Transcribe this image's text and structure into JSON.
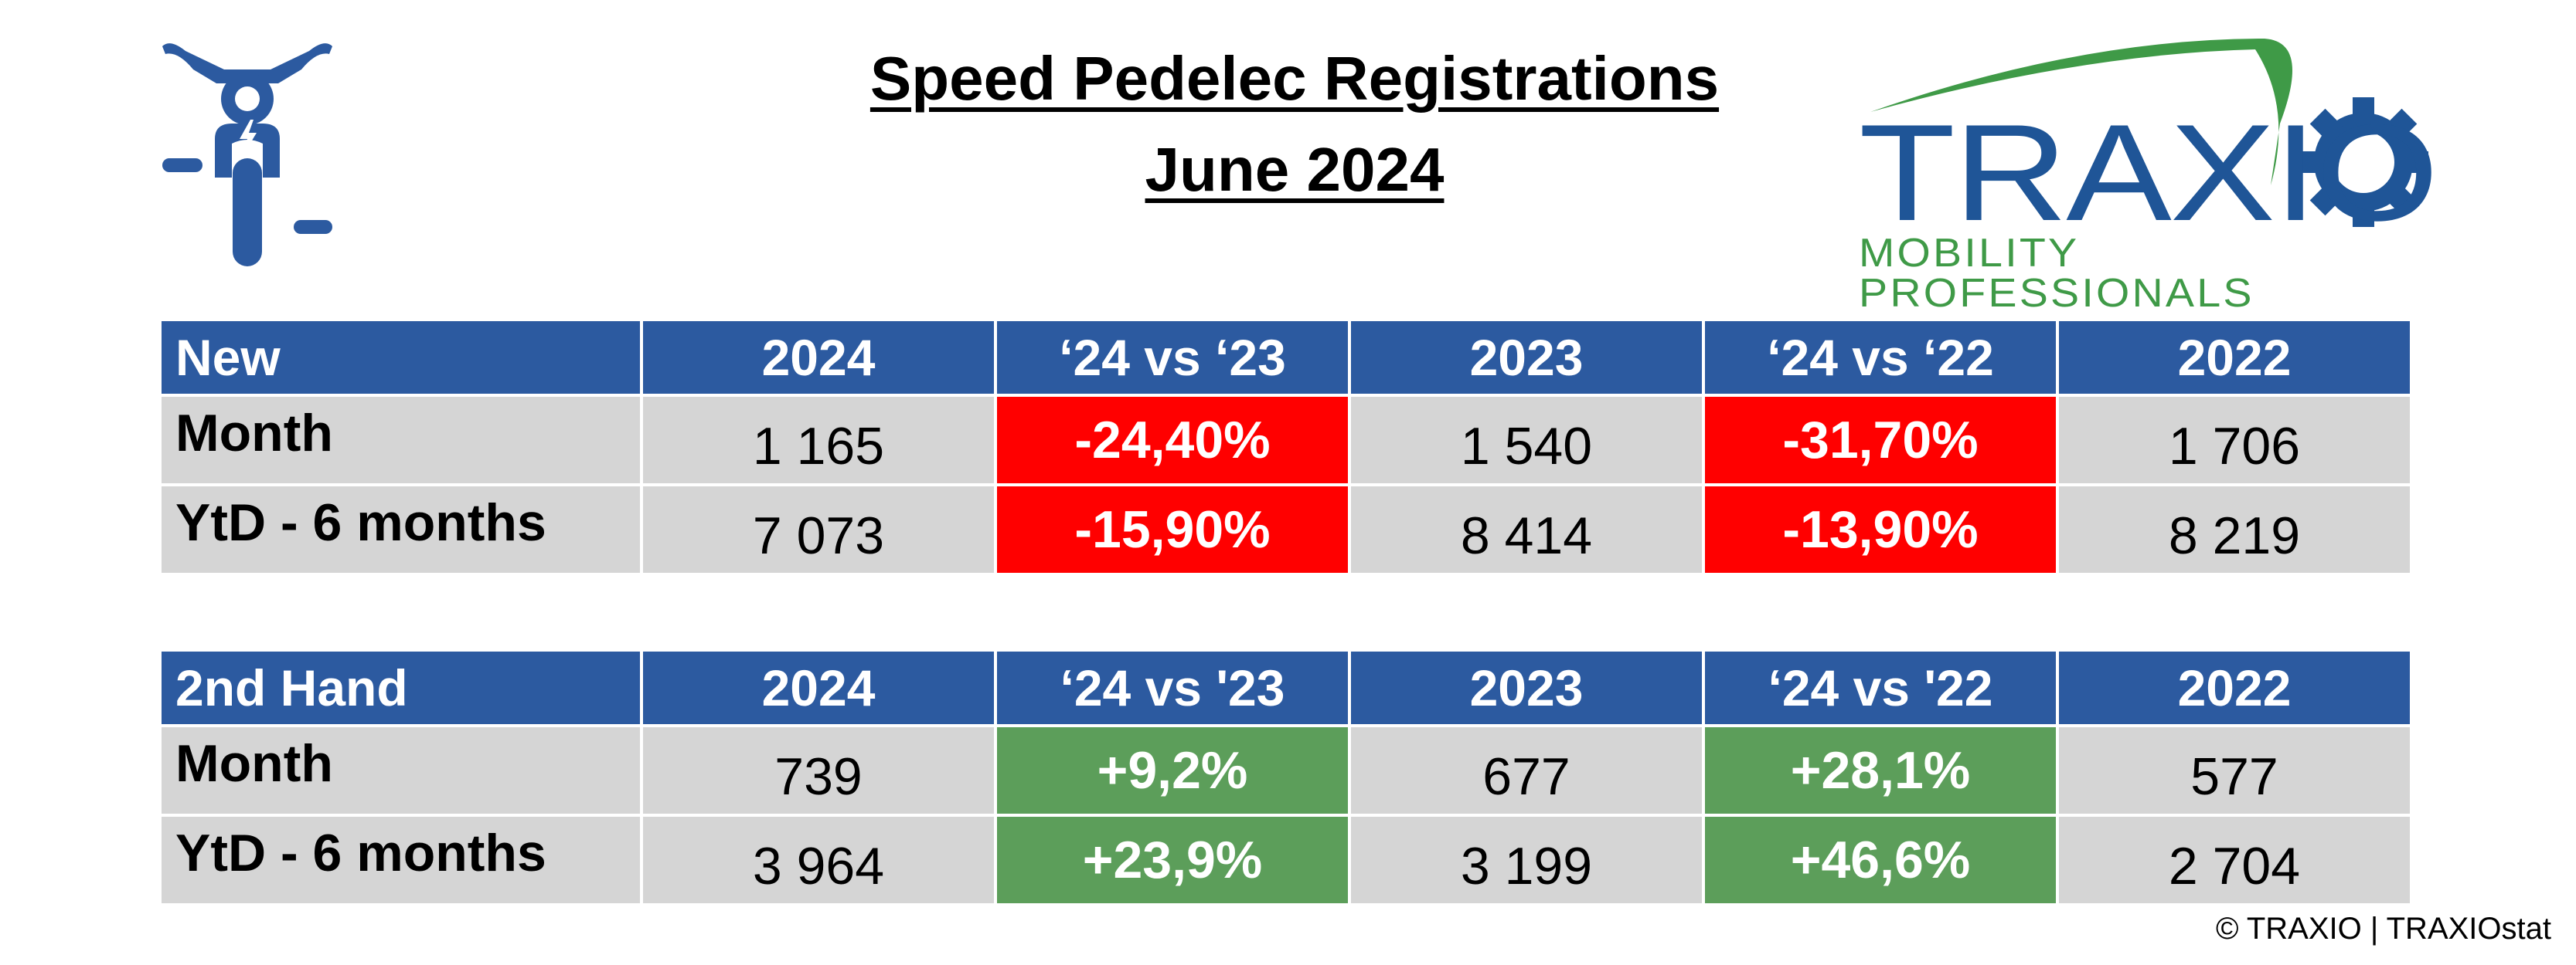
{
  "header": {
    "title_line1": "Speed Pedelec Registrations",
    "title_line2": "June 2024",
    "icon": "speed-pedelec-icon",
    "logo": {
      "name": "TRAXIO",
      "tagline": "MOBILITY PROFESSIONALS"
    }
  },
  "colors": {
    "header_bg": "#2c5aa0",
    "cell_bg": "#d5d5d5",
    "negative": "#ff0000",
    "positive": "#5c9e5a",
    "logo_blue": "#1f5597",
    "logo_green": "#3f9a47"
  },
  "tables": {
    "new": {
      "headers": [
        "New",
        "2024",
        "‘24 vs ‘23",
        "2023",
        "‘24 vs ‘22",
        "2022"
      ],
      "rows": [
        {
          "label": "Month",
          "v2024": "1 165",
          "vs23": "-24,40%",
          "v2023": "1 540",
          "vs22": "-31,70%",
          "v2022": "1 706"
        },
        {
          "label": "YtD - 6 months",
          "v2024": "7 073",
          "vs23": "-15,90%",
          "v2023": "8 414",
          "vs22": "-13,90%",
          "v2022": "8 219"
        }
      ]
    },
    "second_hand": {
      "headers": [
        "2nd Hand",
        "2024",
        "‘24 vs '23",
        "2023",
        "‘24 vs '22",
        "2022"
      ],
      "rows": [
        {
          "label": "Month",
          "v2024": "739",
          "vs23": "+9,2%",
          "v2023": "677",
          "vs22": "+28,1%",
          "v2022": "577"
        },
        {
          "label": "YtD - 6 months",
          "v2024": "3 964",
          "vs23": "+23,9%",
          "v2023": "3 199",
          "vs22": "+46,6%",
          "v2022": "2 704"
        }
      ]
    }
  },
  "footer": {
    "copyright": "© TRAXIO | TRAXIOstat"
  }
}
